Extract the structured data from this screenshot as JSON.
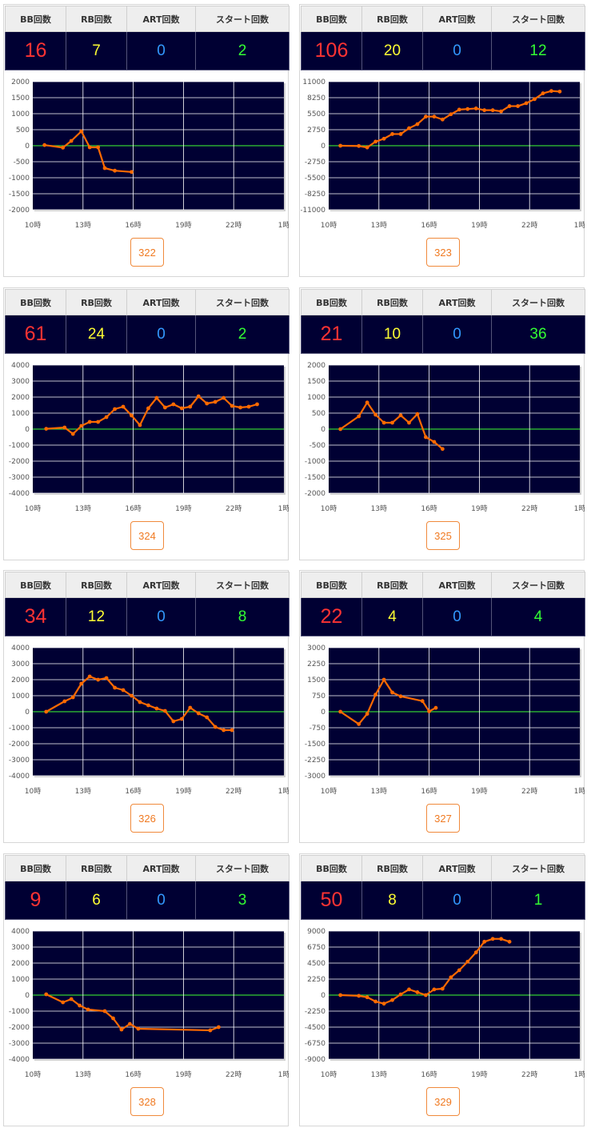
{
  "headers": {
    "bb": "BB回数",
    "rb": "RB回数",
    "art": "ART回数",
    "start": "スタート回数"
  },
  "x_tick_labels": [
    "10時",
    "13時",
    "16時",
    "19時",
    "22時",
    "1時"
  ],
  "colors": {
    "line": "#ff6a00",
    "zero_line": "#33cc33",
    "plot_bg": "#000033"
  },
  "machines": [
    {
      "number": "322",
      "bb": "16",
      "rb": "7",
      "art": "0",
      "start": "2"
    },
    {
      "number": "323",
      "bb": "106",
      "rb": "20",
      "art": "0",
      "start": "12"
    },
    {
      "number": "324",
      "bb": "61",
      "rb": "24",
      "art": "0",
      "start": "2"
    },
    {
      "number": "325",
      "bb": "21",
      "rb": "10",
      "art": "0",
      "start": "36"
    },
    {
      "number": "326",
      "bb": "34",
      "rb": "12",
      "art": "0",
      "start": "8"
    },
    {
      "number": "327",
      "bb": "22",
      "rb": "4",
      "art": "0",
      "start": "4"
    },
    {
      "number": "328",
      "bb": "9",
      "rb": "6",
      "art": "0",
      "start": "3"
    },
    {
      "number": "329",
      "bb": "50",
      "rb": "8",
      "art": "0",
      "start": "1"
    }
  ],
  "chart_data": [
    {
      "type": "line",
      "xlabel": "",
      "ylabel": "",
      "x_unit": "hour",
      "xlim": [
        10,
        25
      ],
      "ylim": [
        -2000,
        2000
      ],
      "y_ticks": [
        "2000",
        "1500",
        "1000",
        "500",
        "0",
        "-500",
        "-1000",
        "-1500",
        "-2000"
      ],
      "x": [
        10.7,
        11.8,
        12.3,
        12.9,
        13.4,
        13.9,
        14.3,
        14.9,
        15.9
      ],
      "y": [
        20,
        -60,
        150,
        450,
        -50,
        -50,
        -700,
        -780,
        -820
      ]
    },
    {
      "type": "line",
      "xlabel": "",
      "ylabel": "",
      "x_unit": "hour",
      "xlim": [
        10,
        25
      ],
      "ylim": [
        -11000,
        11000
      ],
      "y_ticks": [
        "11000",
        "8250",
        "5500",
        "2750",
        "0",
        "-2750",
        "-5500",
        "-8250",
        "-11000"
      ],
      "x": [
        10.7,
        11.8,
        12.3,
        12.8,
        13.3,
        13.8,
        14.3,
        14.8,
        15.3,
        15.8,
        16.3,
        16.8,
        17.3,
        17.8,
        18.3,
        18.8,
        19.3,
        19.8,
        20.3,
        20.8,
        21.3,
        21.8,
        22.3,
        22.8,
        23.3,
        23.8
      ],
      "y": [
        0,
        -50,
        -300,
        700,
        1200,
        2000,
        2000,
        3000,
        3700,
        5000,
        5000,
        4500,
        5400,
        6200,
        6300,
        6400,
        6100,
        6100,
        5900,
        6800,
        6800,
        7300,
        8000,
        9000,
        9400,
        9300
      ]
    },
    {
      "type": "line",
      "xlabel": "",
      "ylabel": "",
      "x_unit": "hour",
      "xlim": [
        10,
        25
      ],
      "ylim": [
        -4000,
        4000
      ],
      "y_ticks": [
        "4000",
        "3000",
        "2000",
        "1000",
        "0",
        "-1000",
        "-2000",
        "-3000",
        "-4000"
      ],
      "x": [
        10.8,
        11.9,
        12.4,
        12.9,
        13.4,
        13.9,
        14.4,
        14.9,
        15.4,
        15.9,
        16.4,
        16.9,
        17.4,
        17.9,
        18.4,
        18.9,
        19.4,
        19.9,
        20.4,
        20.9,
        21.4,
        21.9,
        22.4,
        22.9,
        23.4
      ],
      "y": [
        20,
        100,
        -300,
        200,
        450,
        450,
        750,
        1250,
        1400,
        850,
        250,
        1300,
        1950,
        1350,
        1550,
        1300,
        1400,
        2050,
        1600,
        1700,
        1950,
        1450,
        1350,
        1400,
        1550
      ]
    },
    {
      "type": "line",
      "xlabel": "",
      "ylabel": "",
      "x_unit": "hour",
      "xlim": [
        10,
        25
      ],
      "ylim": [
        -2000,
        2000
      ],
      "y_ticks": [
        "2000",
        "1500",
        "1000",
        "500",
        "0",
        "-500",
        "-1000",
        "-1500",
        "-2000"
      ],
      "x": [
        10.7,
        11.8,
        12.3,
        12.8,
        13.3,
        13.8,
        14.3,
        14.8,
        15.3,
        15.8,
        16.3,
        16.8
      ],
      "y": [
        0,
        400,
        830,
        450,
        200,
        200,
        430,
        200,
        470,
        -250,
        -400,
        -620
      ]
    },
    {
      "type": "line",
      "xlabel": "",
      "ylabel": "",
      "x_unit": "hour",
      "xlim": [
        10,
        25
      ],
      "ylim": [
        -4000,
        4000
      ],
      "y_ticks": [
        "4000",
        "3000",
        "2000",
        "1000",
        "0",
        "-1000",
        "-2000",
        "-3000",
        "-4000"
      ],
      "x": [
        10.8,
        11.9,
        12.4,
        12.9,
        13.4,
        13.9,
        14.4,
        14.9,
        15.4,
        15.9,
        16.4,
        16.9,
        17.4,
        17.9,
        18.4,
        18.9,
        19.4,
        19.9,
        20.4,
        20.9,
        21.4,
        21.9
      ],
      "y": [
        0,
        650,
        900,
        1750,
        2200,
        2000,
        2100,
        1500,
        1350,
        1000,
        600,
        400,
        200,
        50,
        -600,
        -450,
        250,
        -100,
        -350,
        -950,
        -1150,
        -1150
      ]
    },
    {
      "type": "line",
      "xlabel": "",
      "ylabel": "",
      "x_unit": "hour",
      "xlim": [
        10,
        25
      ],
      "ylim": [
        -3000,
        3000
      ],
      "y_ticks": [
        "3000",
        "2250",
        "1500",
        "750",
        "0",
        "-750",
        "-1500",
        "-2250",
        "-3000"
      ],
      "x": [
        10.7,
        11.8,
        12.3,
        12.8,
        13.3,
        13.8,
        14.3,
        15.6,
        16.0,
        16.4
      ],
      "y": [
        0,
        -580,
        -100,
        800,
        1500,
        900,
        720,
        500,
        20,
        180
      ]
    },
    {
      "type": "line",
      "xlabel": "",
      "ylabel": "",
      "x_unit": "hour",
      "xlim": [
        10,
        25
      ],
      "ylim": [
        -4000,
        4000
      ],
      "y_ticks": [
        "4000",
        "3000",
        "2000",
        "1000",
        "0",
        "-1000",
        "-2000",
        "-3000",
        "-4000"
      ],
      "x": [
        10.8,
        11.8,
        12.3,
        12.8,
        13.3,
        14.3,
        14.8,
        15.3,
        15.8,
        16.3,
        20.6,
        21.1
      ],
      "y": [
        50,
        -450,
        -250,
        -650,
        -900,
        -1000,
        -1450,
        -2150,
        -1800,
        -2100,
        -2200,
        -2000
      ]
    },
    {
      "type": "line",
      "xlabel": "",
      "ylabel": "",
      "x_unit": "hour",
      "xlim": [
        10,
        25
      ],
      "ylim": [
        -9000,
        9000
      ],
      "y_ticks": [
        "9000",
        "6750",
        "4500",
        "2250",
        "0",
        "-2250",
        "-4500",
        "-6750",
        "-9000"
      ],
      "x": [
        10.7,
        11.8,
        12.3,
        12.8,
        13.3,
        13.8,
        14.3,
        14.8,
        15.3,
        15.8,
        16.3,
        16.8,
        17.3,
        17.8,
        18.3,
        18.8,
        19.3,
        19.8,
        20.3,
        20.8
      ],
      "y": [
        0,
        -100,
        -300,
        -900,
        -1200,
        -700,
        100,
        800,
        400,
        0,
        800,
        900,
        2500,
        3500,
        4700,
        6000,
        7500,
        7900,
        7900,
        7500
      ]
    }
  ]
}
